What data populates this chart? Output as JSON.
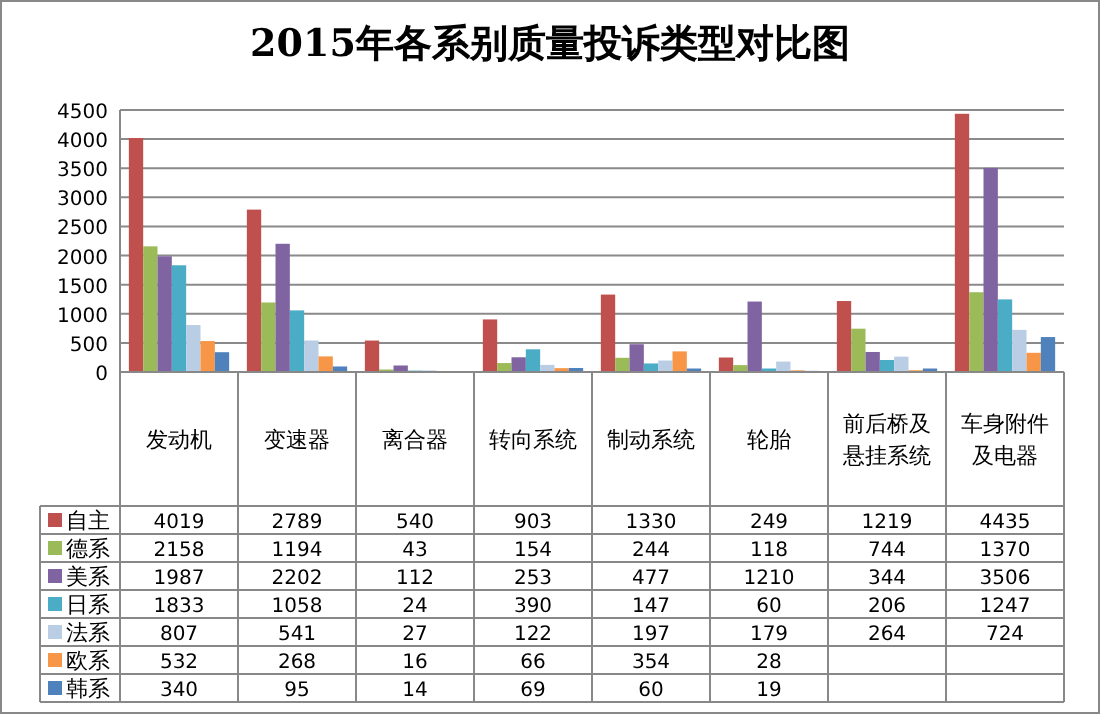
{
  "chart_data": {
    "type": "bar",
    "title": "2015年各系别质量投诉类型对比图",
    "categories": [
      "发动机",
      "变速器",
      "离合器",
      "转向系统",
      "制动系统",
      "轮胎",
      "前后桥及悬挂系统",
      "车身附件及电器"
    ],
    "ylim": [
      0,
      4500
    ],
    "yticks": [
      0,
      500,
      1000,
      1500,
      2000,
      2500,
      3000,
      3500,
      4000,
      4500
    ],
    "grid": "y",
    "legend": "left",
    "series": [
      {
        "name": "自主",
        "color": "#c0504d",
        "values": [
          4019,
          2789,
          540,
          903,
          1330,
          249,
          1219,
          4435
        ],
        "value_labels": [
          "4019",
          "2789",
          "540",
          "903",
          "1330",
          "249",
          "1219",
          "4435"
        ]
      },
      {
        "name": "德系",
        "color": "#9bbb59",
        "values": [
          2158,
          1194,
          43,
          154,
          244,
          118,
          744,
          1370
        ],
        "value_labels": [
          "2158",
          "1194",
          "43",
          "154",
          "244",
          "118",
          "744",
          "1370"
        ]
      },
      {
        "name": "美系",
        "color": "#8064a2",
        "values": [
          1987,
          2202,
          112,
          253,
          477,
          1210,
          344,
          3506
        ],
        "value_labels": [
          "1987",
          "2202",
          "112",
          "253",
          "477",
          "1210",
          "344",
          "3506"
        ]
      },
      {
        "name": "日系",
        "color": "#4bacc6",
        "values": [
          1833,
          1058,
          24,
          390,
          147,
          60,
          206,
          1247
        ],
        "value_labels": [
          "1833",
          "1058",
          "24",
          "390",
          "147",
          "60",
          "206",
          "1247"
        ]
      },
      {
        "name": "法系",
        "color": "#b9cde5",
        "values": [
          807,
          541,
          27,
          122,
          197,
          179,
          264,
          724
        ],
        "value_labels": [
          "807",
          "541",
          "27",
          "122",
          "197",
          "179",
          "264",
          "724"
        ]
      },
      {
        "name": "欧系",
        "color": "#f79646",
        "values": [
          532,
          268,
          16,
          66,
          354,
          28,
          30,
          330
        ],
        "value_labels": [
          "532",
          "268",
          "16",
          "66",
          "354",
          "28",
          null,
          null
        ]
      },
      {
        "name": "韩系",
        "color": "#4f81bd",
        "values": [
          340,
          95,
          14,
          69,
          60,
          19,
          60,
          600
        ],
        "value_labels": [
          "340",
          "95",
          "14",
          "69",
          "60",
          "19",
          null,
          null
        ]
      }
    ]
  }
}
